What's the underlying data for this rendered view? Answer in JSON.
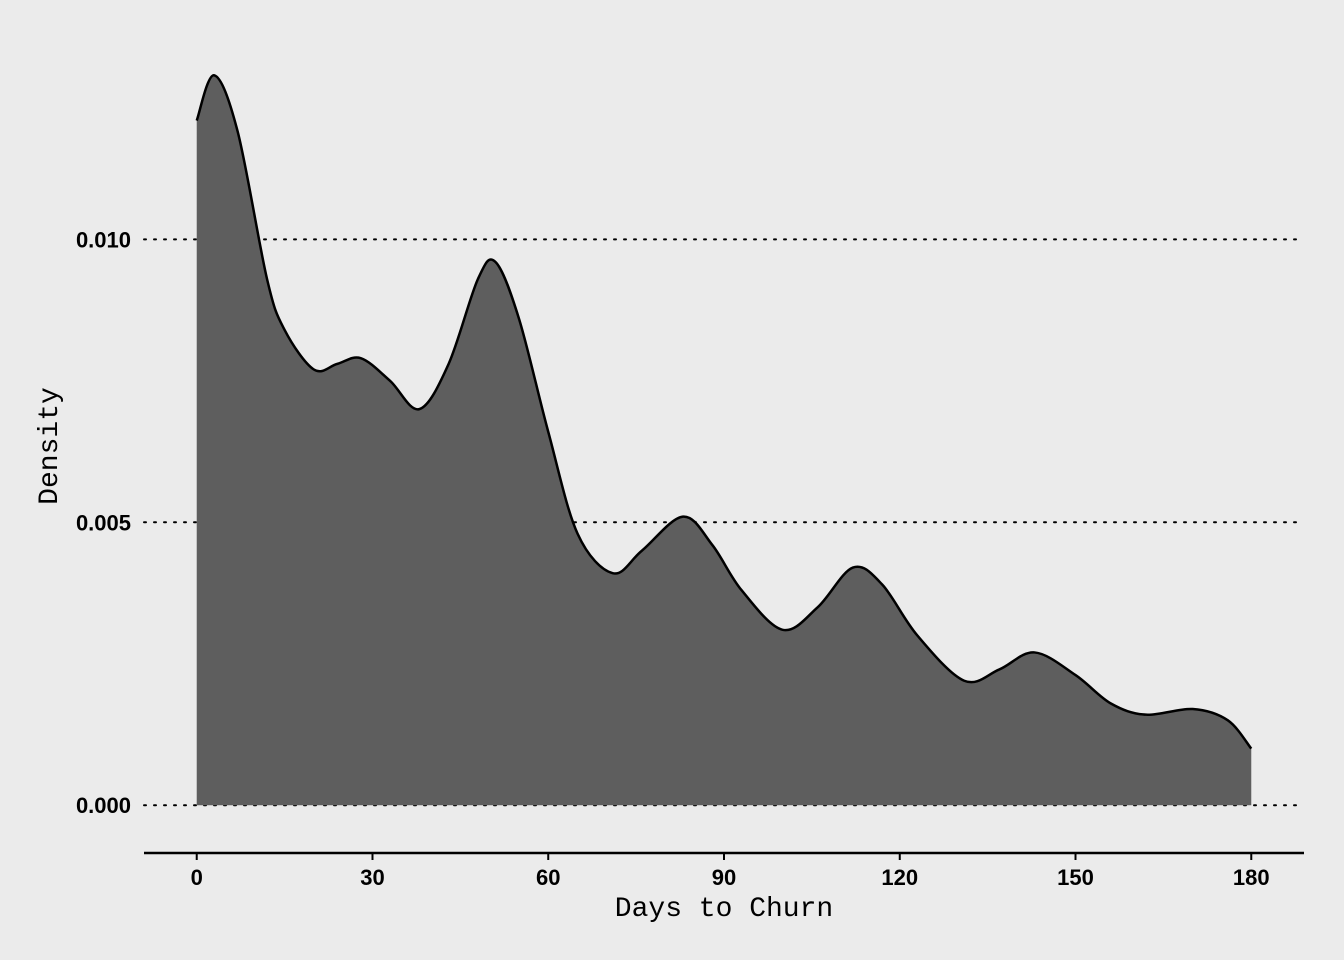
{
  "chart_data": {
    "type": "area",
    "xlabel": "Days to Churn",
    "ylabel": "Density",
    "xlim": [
      -9,
      189
    ],
    "ylim": [
      -0.00065,
      0.0137
    ],
    "x_ticks": [
      0,
      30,
      60,
      90,
      120,
      150,
      180
    ],
    "x_tick_labels": [
      "0",
      "30",
      "60",
      "90",
      "120",
      "150",
      "180"
    ],
    "y_ticks": [
      0,
      0.005,
      0.01
    ],
    "y_tick_labels": [
      "0.000",
      "0.005",
      "0.010"
    ],
    "grid": "horizontal dotted",
    "colors": {
      "fill": "#5e5e5e",
      "line": "#000000",
      "background": "#ebebeb"
    },
    "series": [
      {
        "x": [
          0,
          3,
          7,
          12,
          15,
          20,
          24,
          28,
          33,
          38,
          43,
          48,
          51,
          55,
          60,
          65,
          71,
          76,
          83,
          88,
          93,
          100,
          106,
          112,
          117,
          123,
          131,
          137,
          143,
          150,
          156,
          162,
          170,
          176,
          180
        ],
        "y": [
          0.0121,
          0.0129,
          0.0119,
          0.0093,
          0.0084,
          0.0077,
          0.0078,
          0.0079,
          0.0075,
          0.007,
          0.0078,
          0.0093,
          0.0096,
          0.0086,
          0.0066,
          0.0048,
          0.0041,
          0.0045,
          0.0051,
          0.0046,
          0.0038,
          0.0031,
          0.0035,
          0.0042,
          0.0039,
          0.003,
          0.0022,
          0.0024,
          0.0027,
          0.0023,
          0.0018,
          0.0016,
          0.0017,
          0.0015,
          0.001
        ]
      }
    ]
  }
}
